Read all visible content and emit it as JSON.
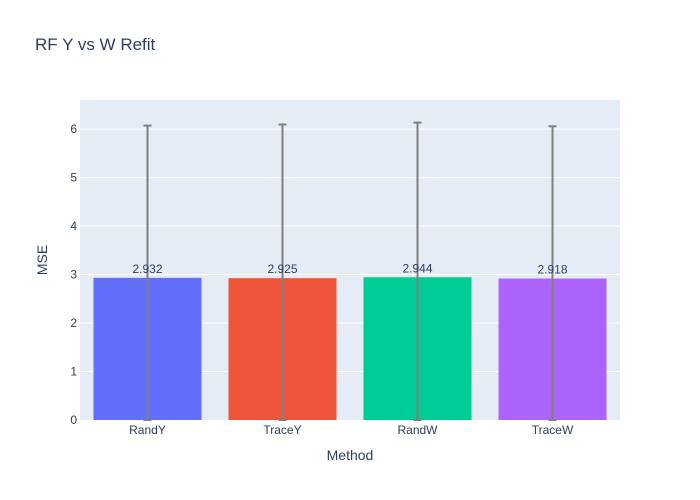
{
  "chart_data": {
    "type": "bar",
    "title": "RF Y vs W Refit",
    "xlabel": "Method",
    "ylabel": "MSE",
    "categories": [
      "RandY",
      "TraceY",
      "RandW",
      "TraceW"
    ],
    "values": [
      2.932,
      2.925,
      2.944,
      2.918
    ],
    "value_labels": [
      "2.932",
      "2.925",
      "2.944",
      "2.918"
    ],
    "error": [
      3.14,
      3.17,
      3.19,
      3.14
    ],
    "colors": [
      "#636efa",
      "#ef553b",
      "#00cc96",
      "#ab63fa"
    ],
    "error_color": "#7f7f7f",
    "ylim": [
      0,
      6.6
    ],
    "yticks": [
      0,
      1,
      2,
      3,
      4,
      5,
      6
    ],
    "ytick_labels": [
      "0",
      "1",
      "2",
      "3",
      "4",
      "5",
      "6"
    ],
    "grid": true,
    "legend": "none"
  }
}
